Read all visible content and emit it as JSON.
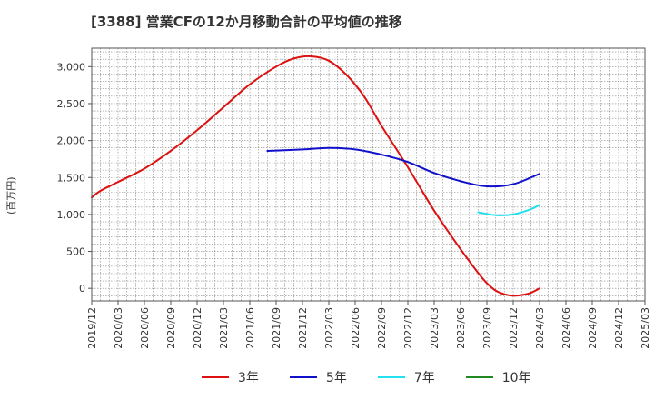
{
  "title": "[3388]  営業CFの12か月移動合計の平均値の推移",
  "chart_data": {
    "type": "line",
    "title": "[3388]  営業CFの12か月移動合計の平均値の推移",
    "ylabel": "(百万円)",
    "xlabel": "",
    "ylim": [
      -170,
      3250
    ],
    "yticks": [
      0,
      500,
      1000,
      1500,
      2000,
      2500,
      3000
    ],
    "ytick_labels": [
      "0",
      "500",
      "1,000",
      "1,500",
      "2,000",
      "2,500",
      "3,000"
    ],
    "x_categories": [
      "2019/12",
      "2020/03",
      "2020/06",
      "2020/09",
      "2020/12",
      "2021/03",
      "2021/06",
      "2021/09",
      "2021/12",
      "2022/03",
      "2022/06",
      "2022/09",
      "2022/12",
      "2023/03",
      "2023/06",
      "2023/09",
      "2023/12",
      "2024/03",
      "2024/06",
      "2024/09",
      "2024/12",
      "2025/03"
    ],
    "grid": true,
    "legend_position": "bottom",
    "series": [
      {
        "name": "3年",
        "color": "#dd1111",
        "points": [
          [
            "2019/12",
            1230
          ],
          [
            "2020/01",
            1320
          ],
          [
            "2020/03",
            1440
          ],
          [
            "2020/06",
            1620
          ],
          [
            "2020/09",
            1860
          ],
          [
            "2020/12",
            2140
          ],
          [
            "2021/03",
            2450
          ],
          [
            "2021/06",
            2760
          ],
          [
            "2021/09",
            3000
          ],
          [
            "2021/11",
            3110
          ],
          [
            "2022/01",
            3140
          ],
          [
            "2022/03",
            3080
          ],
          [
            "2022/05",
            2890
          ],
          [
            "2022/07",
            2600
          ],
          [
            "2022/09",
            2200
          ],
          [
            "2022/12",
            1640
          ],
          [
            "2023/03",
            1050
          ],
          [
            "2023/06",
            530
          ],
          [
            "2023/08",
            210
          ],
          [
            "2023/09",
            70
          ],
          [
            "2023/10",
            -30
          ],
          [
            "2023/11",
            -80
          ],
          [
            "2023/12",
            -100
          ],
          [
            "2024/01",
            -90
          ],
          [
            "2024/02",
            -60
          ],
          [
            "2024/03",
            0
          ]
        ]
      },
      {
        "name": "5年",
        "color": "#1111cc",
        "points": [
          [
            "2021/08",
            1860
          ],
          [
            "2021/12",
            1880
          ],
          [
            "2022/03",
            1900
          ],
          [
            "2022/06",
            1880
          ],
          [
            "2022/09",
            1810
          ],
          [
            "2022/12",
            1710
          ],
          [
            "2023/03",
            1560
          ],
          [
            "2023/06",
            1450
          ],
          [
            "2023/09",
            1380
          ],
          [
            "2023/12",
            1410
          ],
          [
            "2024/03",
            1550
          ]
        ]
      },
      {
        "name": "7年",
        "color": "#22e0ee",
        "points": [
          [
            "2023/08",
            1030
          ],
          [
            "2023/10",
            990
          ],
          [
            "2023/12",
            1000
          ],
          [
            "2024/02",
            1070
          ],
          [
            "2024/03",
            1130
          ]
        ]
      },
      {
        "name": "10年",
        "color": "#228822",
        "points": []
      }
    ]
  }
}
